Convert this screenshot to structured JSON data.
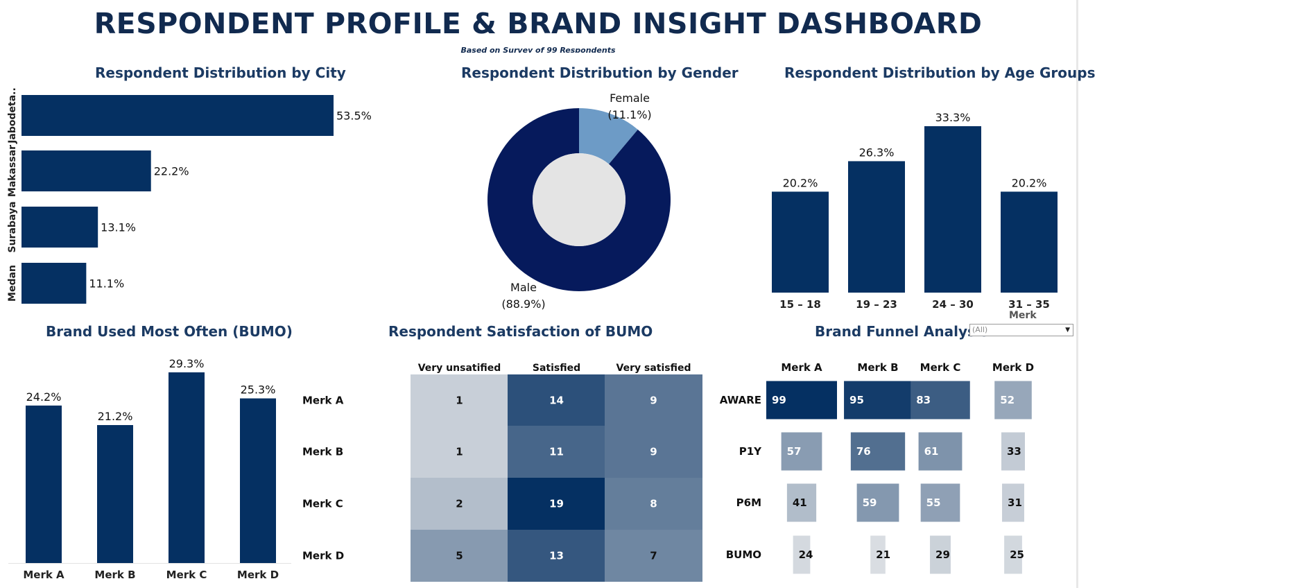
{
  "title": "RESPONDENT PROFILE & BRAND INSIGHT DASHBOARD",
  "subtitle": "Based on Survey of 99 Respondents",
  "colors": {
    "navy": "#053062",
    "title": "#112a4f",
    "donut_male": "#061a5c",
    "donut_female": "#6d9bc6",
    "donut_hole": "#e4e4e4"
  },
  "filter": {
    "label": "Merk",
    "value": "(All)"
  },
  "chart_data": [
    {
      "id": "city",
      "type": "bar",
      "orientation": "horizontal",
      "title": "Respondent Distribution by City",
      "categories": [
        "Jabodeta..",
        "Makassar",
        "Surabaya",
        "Medan"
      ],
      "values": [
        53.5,
        22.2,
        13.1,
        11.1
      ],
      "labels": [
        "53.5%",
        "22.2%",
        "13.1%",
        "11.1%"
      ]
    },
    {
      "id": "gender",
      "type": "pie",
      "donut": true,
      "title": "Respondent Distribution by Gender",
      "slices": [
        {
          "name": "Female",
          "value": 11.1,
          "label": "(11.1%)"
        },
        {
          "name": "Male",
          "value": 88.9,
          "label": "(88.9%)"
        }
      ]
    },
    {
      "id": "age",
      "type": "bar",
      "title": "Respondent Distribution by Age Groups",
      "categories": [
        "15 – 18",
        "19 – 23",
        "24 – 30",
        "31 – 35"
      ],
      "values": [
        20.2,
        26.3,
        33.3,
        20.2
      ],
      "labels": [
        "20.2%",
        "26.3%",
        "33.3%",
        "20.2%"
      ]
    },
    {
      "id": "bumo",
      "type": "bar",
      "title": "Brand Used Most Often (BUMO)",
      "categories": [
        "Merk A",
        "Merk B",
        "Merk C",
        "Merk D"
      ],
      "values": [
        24.2,
        21.2,
        29.3,
        25.3
      ],
      "labels": [
        "24.2%",
        "21.2%",
        "29.3%",
        "25.3%"
      ]
    },
    {
      "id": "satisfaction",
      "type": "heatmap",
      "title": "Respondent Satisfaction of BUMO",
      "columns": [
        "Very unsatified",
        "Satisfied",
        "Very satisfied"
      ],
      "rows": [
        "Merk A",
        "Merk B",
        "Merk C",
        "Merk D"
      ],
      "values": [
        [
          1,
          14,
          9
        ],
        [
          1,
          11,
          9
        ],
        [
          2,
          19,
          8
        ],
        [
          5,
          13,
          7
        ]
      ]
    },
    {
      "id": "funnel",
      "type": "heatmap",
      "title": "Brand Funnel Analysis",
      "columns": [
        "Merk A",
        "Merk B",
        "Merk C",
        "Merk D"
      ],
      "rows": [
        "AWARE",
        "P1Y",
        "P6M",
        "BUMO"
      ],
      "values": [
        [
          99,
          95,
          83,
          52
        ],
        [
          57,
          76,
          61,
          33
        ],
        [
          41,
          59,
          55,
          31
        ],
        [
          24,
          21,
          29,
          25
        ]
      ]
    }
  ]
}
